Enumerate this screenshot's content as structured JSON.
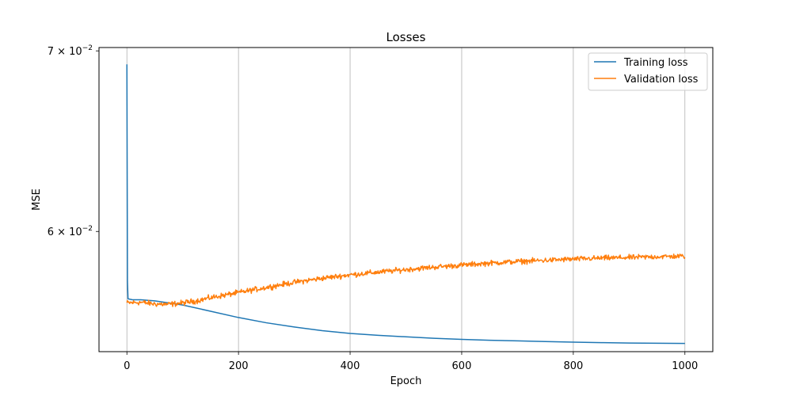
{
  "chart_data": {
    "type": "line",
    "title": "Losses",
    "xlabel": "Epoch",
    "ylabel": "MSE",
    "xlim": [
      -50,
      1050
    ],
    "ylim": [
      0.05415,
      0.0702
    ],
    "yscale": "log",
    "grid": "vertical lines at x ticks",
    "legend_placement": "top-right",
    "x_ticks": [
      {
        "value": 0,
        "label": "0"
      },
      {
        "value": 200,
        "label": "200"
      },
      {
        "value": 400,
        "label": "400"
      },
      {
        "value": 600,
        "label": "600"
      },
      {
        "value": 800,
        "label": "800"
      },
      {
        "value": 1000,
        "label": "1000"
      }
    ],
    "y_ticks": [
      {
        "value": 0.07,
        "base": "7 × 10",
        "exp": "−2"
      },
      {
        "value": 0.06,
        "base": "6 × 10",
        "exp": "−2"
      }
    ],
    "series": [
      {
        "name": "Training loss",
        "color": "#1f77b4",
        "x": [
          0,
          1,
          2,
          5,
          10,
          25,
          50,
          75,
          100,
          150,
          200,
          250,
          300,
          350,
          400,
          450,
          500,
          550,
          600,
          650,
          700,
          750,
          800,
          850,
          900,
          950,
          1000
        ],
        "y": [
          0.0692,
          0.0575,
          0.05665,
          0.05663,
          0.0566,
          0.0566,
          0.05655,
          0.05645,
          0.05635,
          0.05605,
          0.05575,
          0.0555,
          0.0553,
          0.05513,
          0.055,
          0.05491,
          0.05484,
          0.05477,
          0.05472,
          0.05468,
          0.05465,
          0.05462,
          0.05459,
          0.05457,
          0.05455,
          0.05454,
          0.05453
        ]
      },
      {
        "name": "Validation loss",
        "color": "#ff7f0e",
        "noise": 8e-05,
        "x": [
          0,
          25,
          50,
          75,
          100,
          125,
          150,
          200,
          250,
          300,
          350,
          400,
          450,
          500,
          550,
          600,
          650,
          700,
          750,
          800,
          850,
          900,
          950,
          1000
        ],
        "y": [
          0.05645,
          0.05648,
          0.0564,
          0.05638,
          0.05645,
          0.05655,
          0.0567,
          0.05695,
          0.0572,
          0.05745,
          0.05765,
          0.05782,
          0.05795,
          0.05808,
          0.0582,
          0.0583,
          0.0584,
          0.05848,
          0.05854,
          0.0586,
          0.05865,
          0.05868,
          0.05872,
          0.05875
        ]
      }
    ]
  }
}
